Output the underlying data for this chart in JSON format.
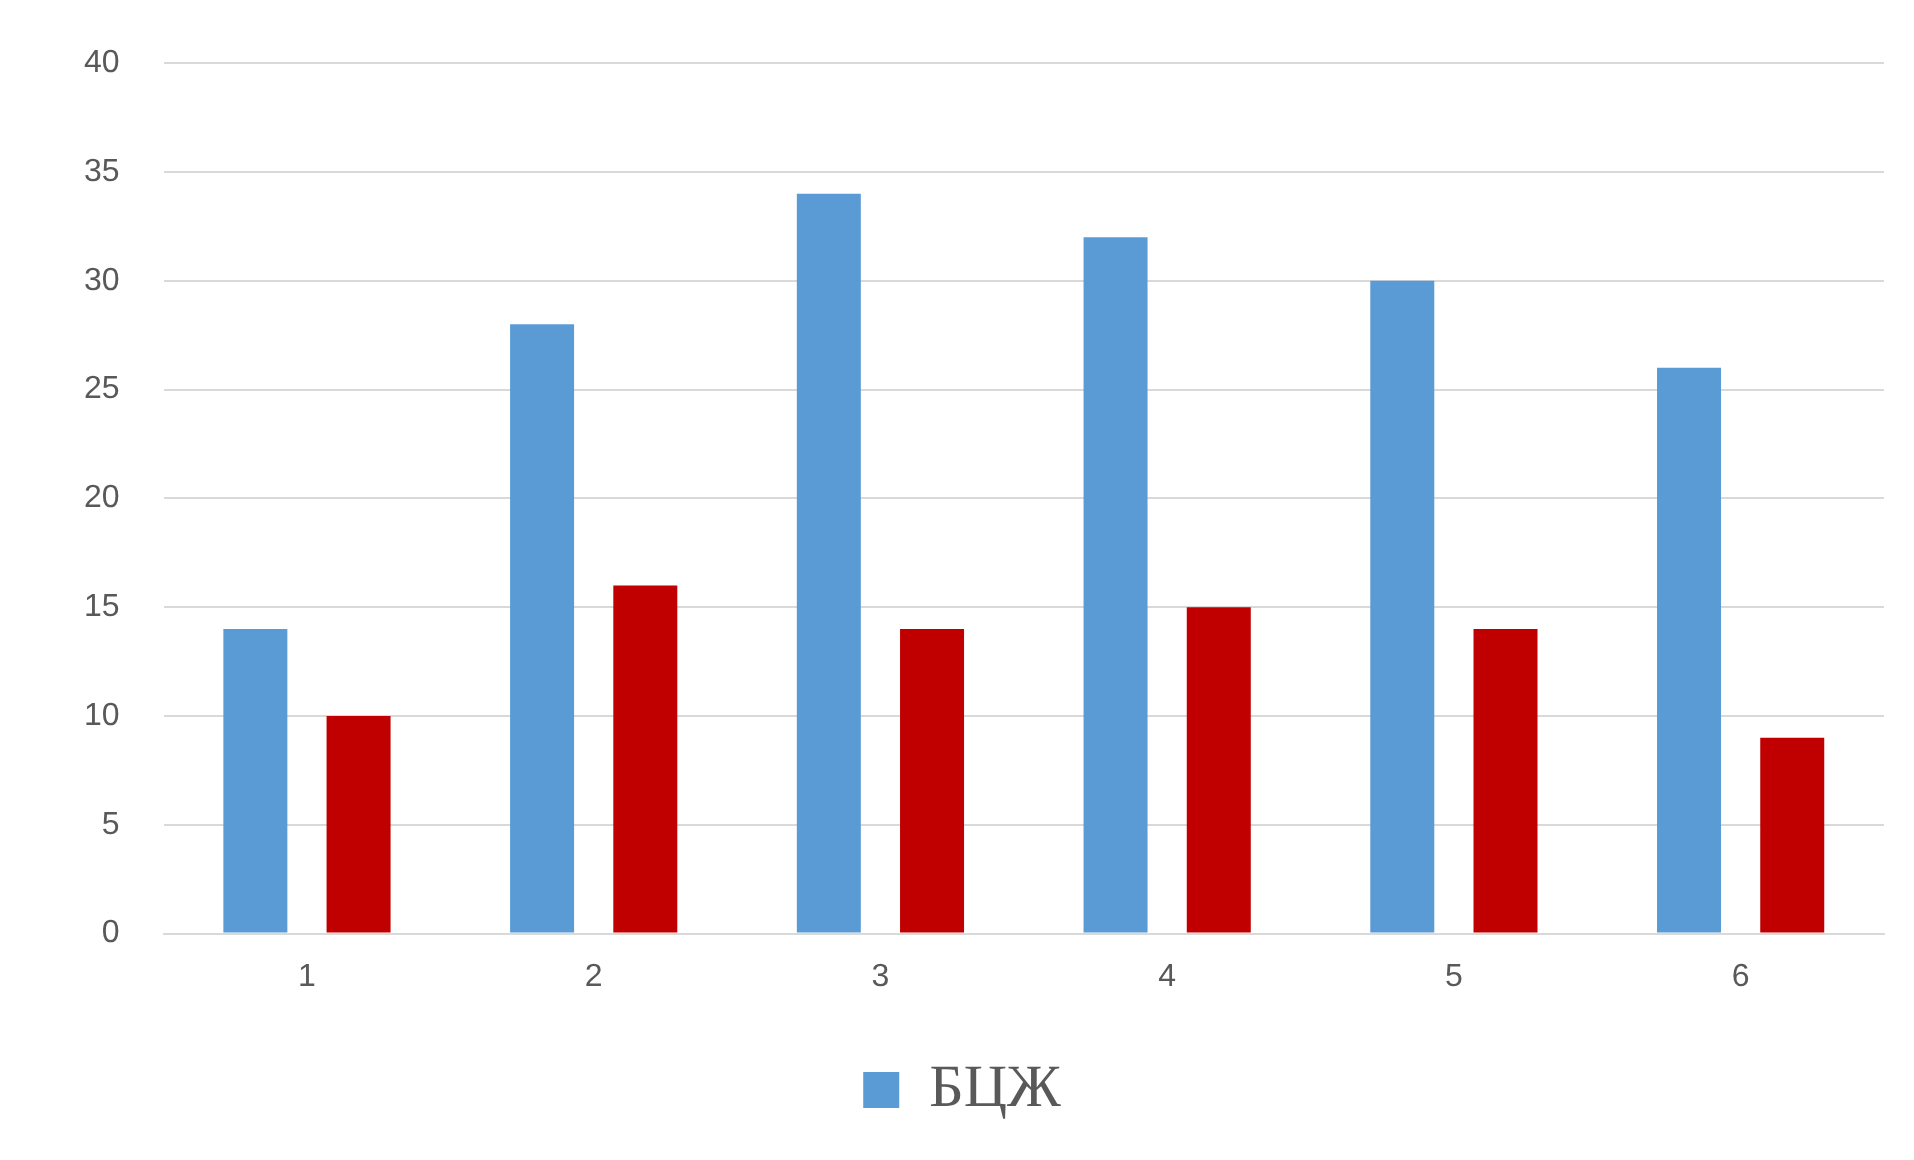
{
  "chart_data": {
    "type": "bar",
    "categories": [
      "1",
      "2",
      "3",
      "4",
      "5",
      "6"
    ],
    "series": [
      {
        "name": "БЦЖ",
        "color": "#5b9bd5",
        "values": [
          14,
          28,
          34,
          32,
          30,
          26
        ]
      },
      {
        "color": "#c00000",
        "values": [
          10,
          16,
          14,
          15,
          14,
          9
        ]
      }
    ],
    "ylim": [
      0,
      40
    ],
    "yticks": [
      0,
      5,
      10,
      15,
      20,
      25,
      30,
      35,
      40
    ],
    "grid": "y",
    "legend": "bottom"
  }
}
